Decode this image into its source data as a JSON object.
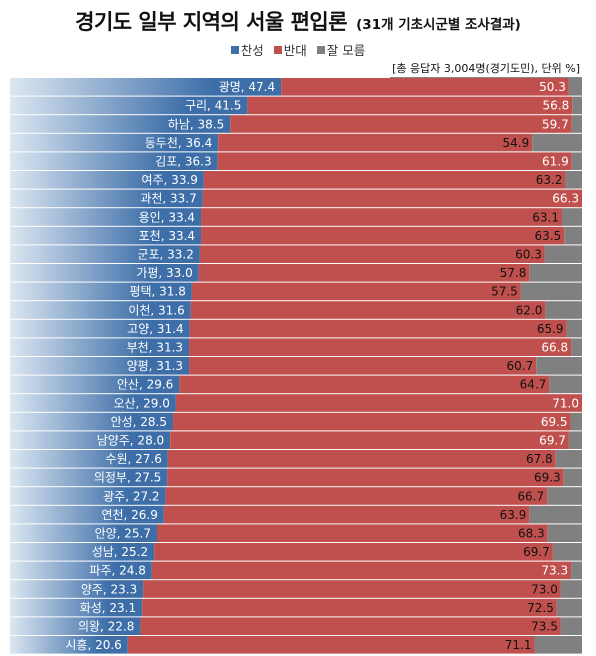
{
  "title": "경기도 일부 지역의 서울 편입론",
  "subtitle": "(31개 기초시군별 조사결과)",
  "note": "[총 응답자 3,004명(경기도민), 단위 %]",
  "legend": [
    {
      "label": "찬성",
      "color": "#3d6ea8"
    },
    {
      "label": "반대",
      "color": "#c0504d"
    },
    {
      "label": "잘 모름",
      "color": "#808080"
    }
  ],
  "colors": {
    "support": "#3d6ea8",
    "support_fade": "#dce7f2",
    "oppose": "#c0504d",
    "unknown": "#808080"
  },
  "chart_data": {
    "type": "bar",
    "stacked": true,
    "orientation": "horizontal",
    "xlim": [
      0,
      100
    ],
    "categories": [
      "광명",
      "구리",
      "하남",
      "동두천",
      "김포",
      "여주",
      "과천",
      "용인",
      "포천",
      "군포",
      "가평",
      "평택",
      "이천",
      "고양",
      "부천",
      "양평",
      "안산",
      "오산",
      "안성",
      "남양주",
      "수원",
      "의정부",
      "광주",
      "연천",
      "안양",
      "성남",
      "파주",
      "양주",
      "화성",
      "의왕",
      "시흥"
    ],
    "series": [
      {
        "name": "찬성",
        "values": [
          47.4,
          41.5,
          38.5,
          36.4,
          36.3,
          33.9,
          33.7,
          33.4,
          33.4,
          33.2,
          33.0,
          31.8,
          31.6,
          31.4,
          31.3,
          31.3,
          29.6,
          29.0,
          28.5,
          28.0,
          27.6,
          27.5,
          27.2,
          26.9,
          25.7,
          25.2,
          24.8,
          23.3,
          23.1,
          22.8,
          20.6
        ]
      },
      {
        "name": "반대",
        "values": [
          50.3,
          56.8,
          59.7,
          54.9,
          61.9,
          63.2,
          66.3,
          63.1,
          63.5,
          60.3,
          57.8,
          57.5,
          62.0,
          65.9,
          66.8,
          60.7,
          64.7,
          71.0,
          69.5,
          69.7,
          67.8,
          69.3,
          66.7,
          63.9,
          68.3,
          69.7,
          73.3,
          73.0,
          72.5,
          73.5,
          71.1
        ]
      },
      {
        "name": "잘 모름",
        "values": [
          2.3,
          1.7,
          1.8,
          8.7,
          1.8,
          2.9,
          0.0,
          3.5,
          3.1,
          6.5,
          9.2,
          10.7,
          6.4,
          2.7,
          1.9,
          8.0,
          5.7,
          0.0,
          2.0,
          2.3,
          4.6,
          3.2,
          6.1,
          9.2,
          6.0,
          5.1,
          1.9,
          3.7,
          4.4,
          3.7,
          8.3
        ]
      }
    ]
  }
}
